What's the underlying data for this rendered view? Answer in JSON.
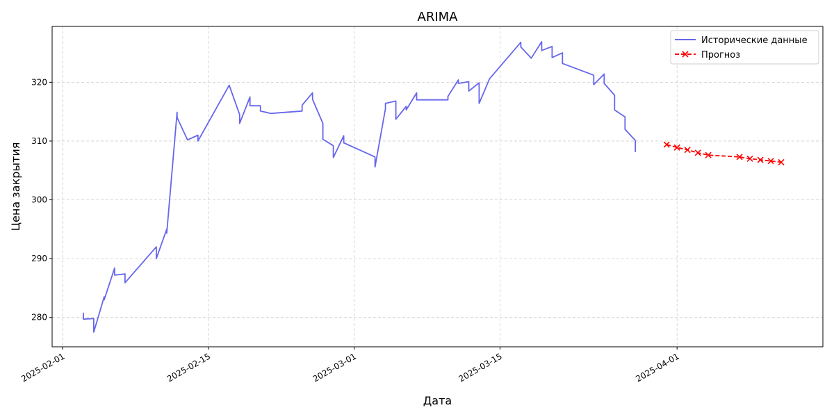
{
  "chart_data": {
    "type": "line",
    "title": "ARIMA",
    "xlabel": "Дата",
    "ylabel": "Цена закрытия",
    "xlim": [
      "2025-01-31",
      "2025-04-15"
    ],
    "ylim": [
      275,
      329.5
    ],
    "x_ticks": [
      "2025-02-01",
      "2025-02-15",
      "2025-03-01",
      "2025-03-15",
      "2025-04-01"
    ],
    "y_ticks": [
      280,
      290,
      300,
      310,
      320
    ],
    "grid": true,
    "legend_position": "top-right",
    "series": [
      {
        "name": "Исторические данные",
        "color": "#6666ee",
        "style": "solid",
        "marker": "none",
        "points": [
          [
            "2025-02-03",
            280.8
          ],
          [
            "2025-02-03",
            279.7
          ],
          [
            "2025-02-04",
            279.8
          ],
          [
            "2025-02-04",
            277.5
          ],
          [
            "2025-02-05",
            283.5
          ],
          [
            "2025-02-05",
            283.0
          ],
          [
            "2025-02-06",
            288.4
          ],
          [
            "2025-02-06",
            287.2
          ],
          [
            "2025-02-07",
            287.4
          ],
          [
            "2025-02-07",
            285.9
          ],
          [
            "2025-02-10",
            292.0
          ],
          [
            "2025-02-10",
            290.0
          ],
          [
            "2025-02-11",
            295.0
          ],
          [
            "2025-02-11",
            294.3
          ],
          [
            "2025-02-12",
            314.9
          ],
          [
            "2025-02-12",
            314.0
          ],
          [
            "2025-02-13",
            310.2
          ],
          [
            "2025-02-14",
            311.0
          ],
          [
            "2025-02-14",
            310.0
          ],
          [
            "2025-02-17",
            319.5
          ],
          [
            "2025-02-18",
            314.5
          ],
          [
            "2025-02-18",
            313.0
          ],
          [
            "2025-02-19",
            317.5
          ],
          [
            "2025-02-19",
            316.0
          ],
          [
            "2025-02-20",
            316.0
          ],
          [
            "2025-02-20",
            315.1
          ],
          [
            "2025-02-21",
            314.7
          ],
          [
            "2025-02-24",
            315.1
          ],
          [
            "2025-02-24",
            316.1
          ],
          [
            "2025-02-25",
            318.2
          ],
          [
            "2025-02-25",
            317.1
          ],
          [
            "2025-02-26",
            313.0
          ],
          [
            "2025-02-26",
            310.3
          ],
          [
            "2025-02-27",
            309.2
          ],
          [
            "2025-02-27",
            307.2
          ],
          [
            "2025-02-28",
            310.9
          ],
          [
            "2025-02-28",
            309.7
          ],
          [
            "2025-03-03",
            307.3
          ],
          [
            "2025-03-03",
            305.6
          ],
          [
            "2025-03-04",
            315.5
          ],
          [
            "2025-03-04",
            316.4
          ],
          [
            "2025-03-05",
            316.8
          ],
          [
            "2025-03-05",
            313.7
          ],
          [
            "2025-03-06",
            315.9
          ],
          [
            "2025-03-06",
            315.3
          ],
          [
            "2025-03-07",
            318.2
          ],
          [
            "2025-03-07",
            317.0
          ],
          [
            "2025-03-10",
            317.0
          ],
          [
            "2025-03-10",
            317.6
          ],
          [
            "2025-03-11",
            320.4
          ],
          [
            "2025-03-11",
            319.8
          ],
          [
            "2025-03-12",
            320.1
          ],
          [
            "2025-03-12",
            318.5
          ],
          [
            "2025-03-13",
            319.9
          ],
          [
            "2025-03-13",
            316.4
          ],
          [
            "2025-03-14",
            320.6
          ],
          [
            "2025-03-17",
            326.8
          ],
          [
            "2025-03-17",
            326.0
          ],
          [
            "2025-03-18",
            324.1
          ],
          [
            "2025-03-19",
            326.9
          ],
          [
            "2025-03-19",
            325.4
          ],
          [
            "2025-03-20",
            326.1
          ],
          [
            "2025-03-20",
            324.2
          ],
          [
            "2025-03-21",
            325.0
          ],
          [
            "2025-03-21",
            323.2
          ],
          [
            "2025-03-24",
            321.2
          ],
          [
            "2025-03-24",
            319.6
          ],
          [
            "2025-03-25",
            321.4
          ],
          [
            "2025-03-25",
            319.8
          ],
          [
            "2025-03-26",
            317.8
          ],
          [
            "2025-03-26",
            315.3
          ],
          [
            "2025-03-27",
            314.1
          ],
          [
            "2025-03-27",
            312.0
          ],
          [
            "2025-03-28",
            310.1
          ],
          [
            "2025-03-28",
            308.1
          ]
        ]
      },
      {
        "name": "Прогноз",
        "color": "#ff0000",
        "style": "dashed",
        "marker": "x",
        "points": [
          [
            "2025-03-31",
            309.4
          ],
          [
            "2025-04-01",
            308.9
          ],
          [
            "2025-04-02",
            308.5
          ],
          [
            "2025-04-03",
            308.0
          ],
          [
            "2025-04-04",
            307.6
          ],
          [
            "2025-04-07",
            307.3
          ],
          [
            "2025-04-08",
            307.0
          ],
          [
            "2025-04-09",
            306.8
          ],
          [
            "2025-04-10",
            306.6
          ],
          [
            "2025-04-11",
            306.4
          ]
        ]
      }
    ]
  }
}
